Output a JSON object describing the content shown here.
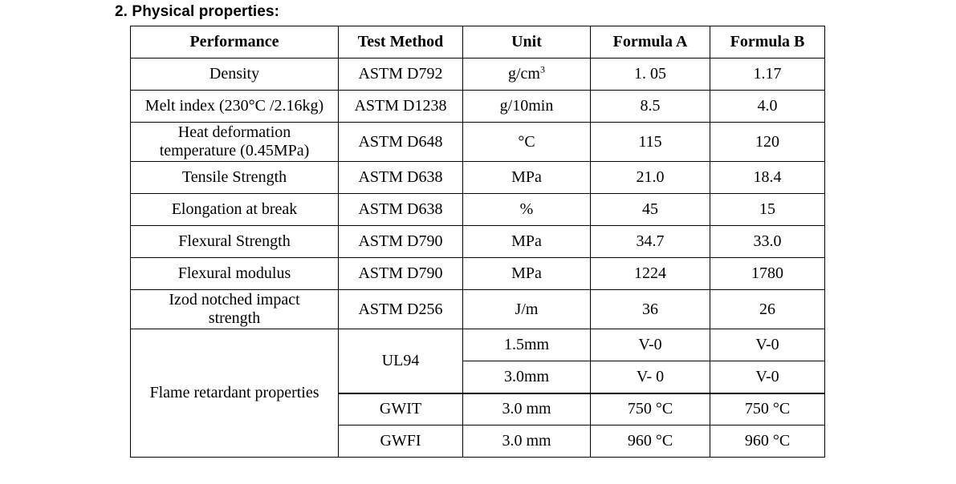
{
  "heading": "2. Physical properties:",
  "columns": {
    "performance": "Performance",
    "test_method": "Test Method",
    "unit": "Unit",
    "formula_a": "Formula A",
    "formula_b": "Formula B"
  },
  "rows": [
    {
      "performance": "Density",
      "method": "ASTM D792",
      "unit": "g/cm",
      "unit_sup": "3",
      "a": "1. 05",
      "b": "1.17"
    },
    {
      "performance": "Melt index (230°C /2.16kg)",
      "method": "ASTM D1238",
      "unit": "g/10min",
      "a": "8.5",
      "b": "4.0"
    },
    {
      "performance": "Heat deformation",
      "performance_line2": "temperature (0.45MPa)",
      "method": "ASTM D648",
      "unit": "°C",
      "a": "115",
      "b": "120"
    },
    {
      "performance": "Tensile Strength",
      "method": "ASTM D638",
      "unit": "MPa",
      "a": "21.0",
      "b": "18.4"
    },
    {
      "performance": "Elongation at break",
      "method": "ASTM D638",
      "unit": "%",
      "a": "45",
      "b": "15"
    },
    {
      "performance": "Flexural Strength",
      "method": "ASTM D790",
      "unit": "MPa",
      "a": "34.7",
      "b": "33.0"
    },
    {
      "performance": "Flexural modulus",
      "method": "ASTM D790",
      "unit": "MPa",
      "a": "1224",
      "b": "1780"
    },
    {
      "performance": "Izod notched impact",
      "performance_line2": "strength",
      "method": "ASTM D256",
      "unit": "J/m",
      "a": "36",
      "b": "26"
    }
  ],
  "flame": {
    "performance": "Flame retardant properties",
    "ul94": {
      "method": "UL94",
      "rows": [
        {
          "unit": "1.5mm",
          "a": "V-0",
          "b": "V-0"
        },
        {
          "unit": "3.0mm",
          "a": "V- 0",
          "b": "V-0"
        }
      ]
    },
    "gwit": {
      "method": "GWIT",
      "unit": "3.0 mm",
      "a": "750 °C",
      "b": "750 °C"
    },
    "gwfi": {
      "method": "GWFI",
      "unit": "3.0 mm",
      "a": "960 °C",
      "b": "960 °C"
    }
  }
}
